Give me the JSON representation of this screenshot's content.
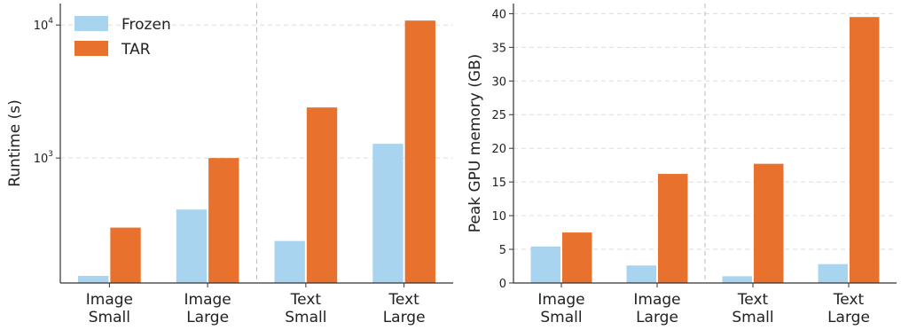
{
  "legend": {
    "placement": "upper-left",
    "entries": [
      "Frozen",
      "TAR"
    ]
  },
  "colors": {
    "Frozen": "#a8d4ef",
    "TAR": "#e8722d",
    "axis": "#333333",
    "grid": "#dddddd",
    "divider": "#bbbbbb"
  },
  "chart_data": [
    {
      "type": "bar",
      "categories": [
        "Image\nSmall",
        "Image\nLarge",
        "Text\nSmall",
        "Text\nLarge"
      ],
      "category_lines": [
        [
          "Image",
          "Small"
        ],
        [
          "Image",
          "Large"
        ],
        [
          "Text",
          "Small"
        ],
        [
          "Text",
          "Large"
        ]
      ],
      "series": [
        {
          "name": "Frozen",
          "values": [
            130,
            410,
            238,
            1280
          ]
        },
        {
          "name": "TAR",
          "values": [
            300,
            1000,
            2400,
            10800
          ]
        }
      ],
      "xlabel": "",
      "ylabel": "Runtime (s)",
      "yscale": "log",
      "ylim": [
        115,
        14500
      ],
      "yticks": [
        {
          "value": 1000,
          "base": "10",
          "exp": "3"
        },
        {
          "value": 10000,
          "base": "10",
          "exp": "4"
        }
      ],
      "grid": "y-dashed",
      "divider_between": [
        "Image\nLarge",
        "Text\nSmall"
      ]
    },
    {
      "type": "bar",
      "categories": [
        "Image\nSmall",
        "Image\nLarge",
        "Text\nSmall",
        "Text\nLarge"
      ],
      "category_lines": [
        [
          "Image",
          "Small"
        ],
        [
          "Image",
          "Large"
        ],
        [
          "Text",
          "Small"
        ],
        [
          "Text",
          "Large"
        ]
      ],
      "series": [
        {
          "name": "Frozen",
          "values": [
            5.4,
            2.6,
            1.0,
            2.8
          ]
        },
        {
          "name": "TAR",
          "values": [
            7.5,
            16.2,
            17.7,
            39.5
          ]
        }
      ],
      "xlabel": "",
      "ylabel": "Peak GPU memory (GB)",
      "yscale": "linear",
      "ylim": [
        0,
        41.5
      ],
      "yticks": [
        0,
        5,
        10,
        15,
        20,
        25,
        30,
        35,
        40
      ],
      "grid": "y-dashed",
      "divider_between": [
        "Image\nLarge",
        "Text\nSmall"
      ]
    }
  ]
}
